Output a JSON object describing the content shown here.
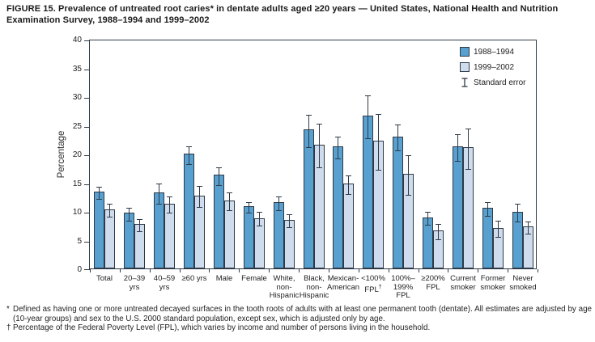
{
  "title": "FIGURE 15. Prevalence of untreated root caries* in dentate adults aged ≥20 years — United States, National Health and Nutrition Examination Survey, 1988–1994 and 1999–2002",
  "chart_data": {
    "type": "bar",
    "title": "Prevalence of untreated root caries in dentate adults aged ≥20 years",
    "xlabel": "",
    "ylabel": "Percentage",
    "ylim": [
      0,
      40
    ],
    "yticks": [
      0,
      5,
      10,
      15,
      20,
      25,
      30,
      35,
      40
    ],
    "grid": false,
    "legend_position": "top-right-inside",
    "categories": [
      [
        "Total"
      ],
      [
        "20–39",
        "yrs"
      ],
      [
        "40–59",
        "yrs"
      ],
      [
        "≥60 yrs"
      ],
      [
        "Male"
      ],
      [
        "Female"
      ],
      [
        "White,",
        "non-",
        "Hispanic"
      ],
      [
        "Black,",
        "non-",
        "Hispanic"
      ],
      [
        "Mexican-",
        "American"
      ],
      [
        "<100%",
        "FPL†"
      ],
      [
        "100%–",
        "199%",
        "FPL"
      ],
      [
        "≥200%",
        "FPL"
      ],
      [
        "Current",
        "smoker"
      ],
      [
        "Former",
        "smoker"
      ],
      [
        "Never",
        "smoked"
      ]
    ],
    "series": [
      {
        "name": "1988–1994",
        "color": "#57a0cf",
        "values": [
          13.4,
          9.7,
          13.3,
          20.0,
          16.3,
          10.9,
          11.5,
          24.2,
          21.2,
          26.6,
          23.0,
          8.9,
          21.2,
          10.6,
          9.9
        ],
        "standard_errors": [
          1.1,
          1.2,
          1.8,
          1.6,
          1.6,
          1.0,
          1.3,
          2.9,
          2.0,
          3.8,
          2.3,
          1.2,
          2.4,
          1.3,
          1.6
        ]
      },
      {
        "name": "1999–2002",
        "color": "#cfdcee",
        "values": [
          10.3,
          7.8,
          11.3,
          12.7,
          11.9,
          8.8,
          8.5,
          21.6,
          14.8,
          22.3,
          16.5,
          6.6,
          21.1,
          7.1,
          7.3
        ],
        "standard_errors": [
          1.2,
          1.1,
          1.5,
          1.9,
          1.6,
          1.3,
          1.2,
          3.9,
          1.7,
          4.9,
          3.5,
          1.4,
          3.6,
          1.5,
          1.1
        ]
      }
    ],
    "legend": [
      {
        "swatch": "series-0",
        "label": "1988–1994"
      },
      {
        "swatch": "series-1",
        "label": "1999–2002"
      },
      {
        "swatch": "error-bar",
        "label": "Standard error"
      }
    ]
  },
  "footnotes": [
    {
      "marker": "*",
      "text": "Defined as having one or more untreated decayed surfaces in the tooth roots of adults with at least one permanent tooth (dentate). All estimates are adjusted by age (10-year groups) and sex to the U.S. 2000 standard population, except sex, which is adjusted only by age."
    },
    {
      "marker": "†",
      "text": "Percentage of the Federal Poverty Level (FPL), which varies by income and number of persons living in the household."
    }
  ],
  "colors": {
    "series_1988_1994": "#57a0cf",
    "series_1999_2002": "#cfdcee",
    "axis_and_outline": "#2f3a47",
    "background": "#ffffff",
    "text": "#1f1f1f"
  }
}
